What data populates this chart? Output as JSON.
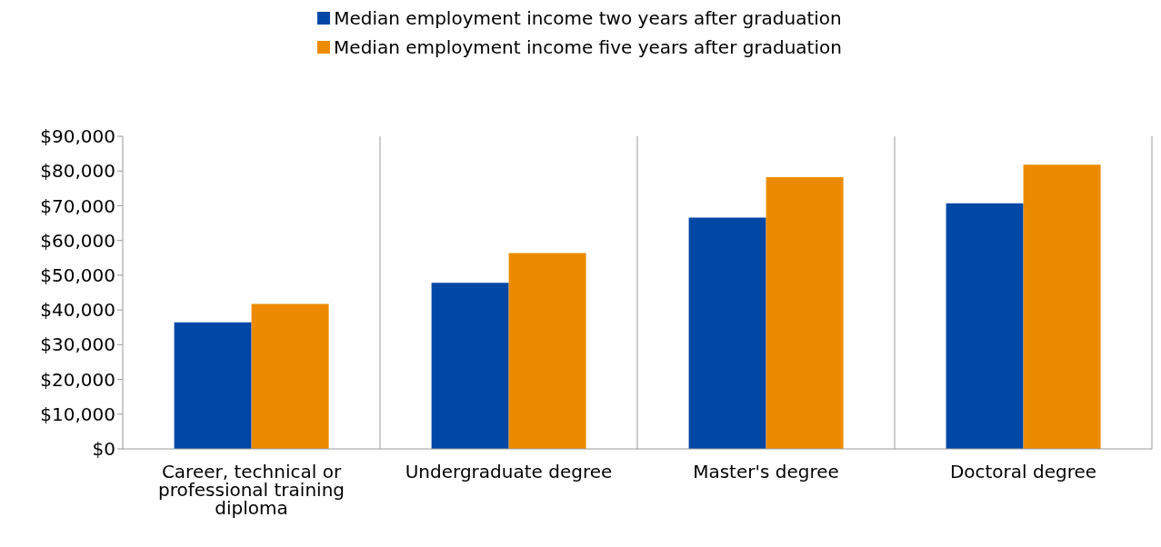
{
  "chart_data": {
    "type": "bar",
    "categories": [
      "Career, technical or professional training diploma",
      "Undergraduate degree",
      "Master's degree",
      "Doctoral degree"
    ],
    "series": [
      {
        "name": "Median employment income two years after graduation",
        "color": "#0047a6",
        "values": [
          36400,
          47800,
          66600,
          70700
        ]
      },
      {
        "name": "Median employment income five years after graduation",
        "color": "#ed8b00",
        "values": [
          41700,
          56400,
          78200,
          81800
        ]
      }
    ],
    "ylim": [
      0,
      90000
    ],
    "yticks": [
      {
        "value": 0,
        "label": "$0"
      },
      {
        "value": 10000,
        "label": "$10,000"
      },
      {
        "value": 20000,
        "label": "$20,000"
      },
      {
        "value": 30000,
        "label": "$30,000"
      },
      {
        "value": 40000,
        "label": "$40,000"
      },
      {
        "value": 50000,
        "label": "$50,000"
      },
      {
        "value": 60000,
        "label": "$60,000"
      },
      {
        "value": 70000,
        "label": "$70,000"
      },
      {
        "value": 80000,
        "label": "$80,000"
      },
      {
        "value": 90000,
        "label": "$90,000"
      }
    ],
    "grid": "x",
    "legend": "top"
  }
}
